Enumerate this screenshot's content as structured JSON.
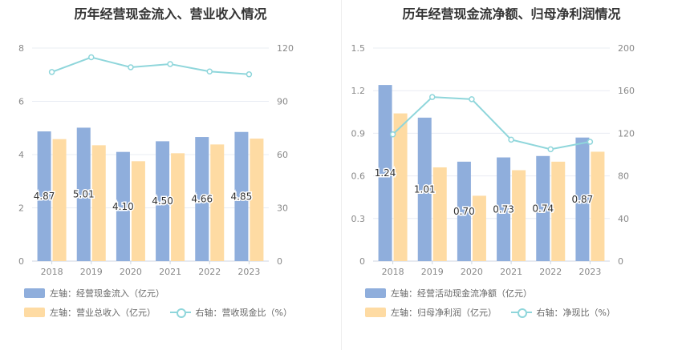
{
  "colors": {
    "bar1": "#8faedc",
    "bar2": "#fedba3",
    "line": "#8fd6db",
    "grid": "#e8ecf3",
    "axis_text": "#888888"
  },
  "chart_data": [
    {
      "type": "bar",
      "title": "历年经营现金流入、营业收入情况",
      "categories": [
        "2018",
        "2019",
        "2020",
        "2021",
        "2022",
        "2023"
      ],
      "left_ticks": [
        "0",
        "2",
        "4",
        "6",
        "8"
      ],
      "right_ticks": [
        "0",
        "30",
        "60",
        "90",
        "120"
      ],
      "ylim_left": [
        0,
        8
      ],
      "ylim_right": [
        0,
        120
      ],
      "series": [
        {
          "name": "左轴：经营现金流入（亿元）",
          "axis": "left",
          "kind": "bar",
          "values": [
            4.87,
            5.01,
            4.1,
            4.5,
            4.66,
            4.85
          ],
          "labels": [
            "4.87",
            "5.01",
            "4.10",
            "4.50",
            "4.66",
            "4.85"
          ]
        },
        {
          "name": "左轴：营业总收入（亿元）",
          "axis": "left",
          "kind": "bar",
          "values": [
            4.58,
            4.35,
            3.75,
            4.05,
            4.38,
            4.6
          ]
        },
        {
          "name": "右轴：营收现金比（%）",
          "axis": "right",
          "kind": "line",
          "values": [
            106.5,
            114.8,
            109.2,
            111.0,
            106.8,
            105.2
          ]
        }
      ]
    },
    {
      "type": "bar",
      "title": "历年经营现金流净额、归母净利润情况",
      "categories": [
        "2018",
        "2019",
        "2020",
        "2021",
        "2022",
        "2023"
      ],
      "left_ticks": [
        "0",
        "0.3",
        "0.6",
        "0.9",
        "1.2",
        "1.5"
      ],
      "right_ticks": [
        "0",
        "40",
        "80",
        "120",
        "160",
        "200"
      ],
      "ylim_left": [
        0,
        1.5
      ],
      "ylim_right": [
        0,
        200
      ],
      "series": [
        {
          "name": "左轴：经营活动现金流净额（亿元）",
          "axis": "left",
          "kind": "bar",
          "values": [
            1.24,
            1.01,
            0.7,
            0.73,
            0.74,
            0.87
          ],
          "labels": [
            "1.24",
            "1.01",
            "0.70",
            "0.73",
            "0.74",
            "0.87"
          ]
        },
        {
          "name": "左轴：归母净利润（亿元）",
          "axis": "left",
          "kind": "bar",
          "values": [
            1.04,
            0.66,
            0.46,
            0.64,
            0.7,
            0.77
          ]
        },
        {
          "name": "右轴：净现比（%）",
          "axis": "right",
          "kind": "line",
          "values": [
            119,
            154,
            152,
            114,
            105,
            112
          ]
        }
      ]
    }
  ]
}
